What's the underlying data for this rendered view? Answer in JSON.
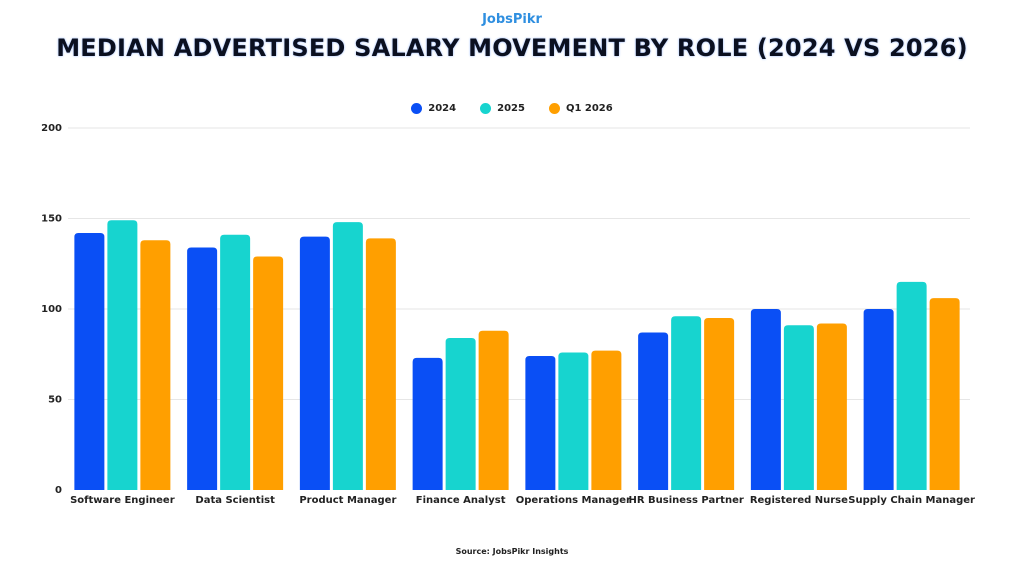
{
  "logo": "JobsPikr",
  "chart_data": {
    "type": "bar",
    "title": "MEDIAN ADVERTISED SALARY MOVEMENT BY ROLE (2024 VS 2026)",
    "xlabel": "",
    "ylabel": "",
    "ylim": [
      0,
      200
    ],
    "yticks": [
      0,
      50,
      100,
      150,
      200
    ],
    "grid": true,
    "legend_placement": "top-center",
    "categories": [
      "Software Engineer",
      "Data Scientist",
      "Product Manager",
      "Finance Analyst",
      "Operations Manager",
      "HR Business Partner",
      "Registered Nurse",
      "Supply Chain Manager"
    ],
    "series": [
      {
        "name": "2024",
        "color": "#0a4ff5",
        "values": [
          142,
          134,
          140,
          73,
          74,
          87,
          100,
          100
        ]
      },
      {
        "name": "2025",
        "color": "#17d4cf",
        "values": [
          149,
          141,
          148,
          84,
          76,
          96,
          91,
          115
        ]
      },
      {
        "name": "Q1 2026",
        "color": "#ff9f00",
        "values": [
          138,
          129,
          139,
          88,
          77,
          95,
          92,
          106
        ]
      }
    ],
    "source": "Source: JobsPikr Insights"
  }
}
